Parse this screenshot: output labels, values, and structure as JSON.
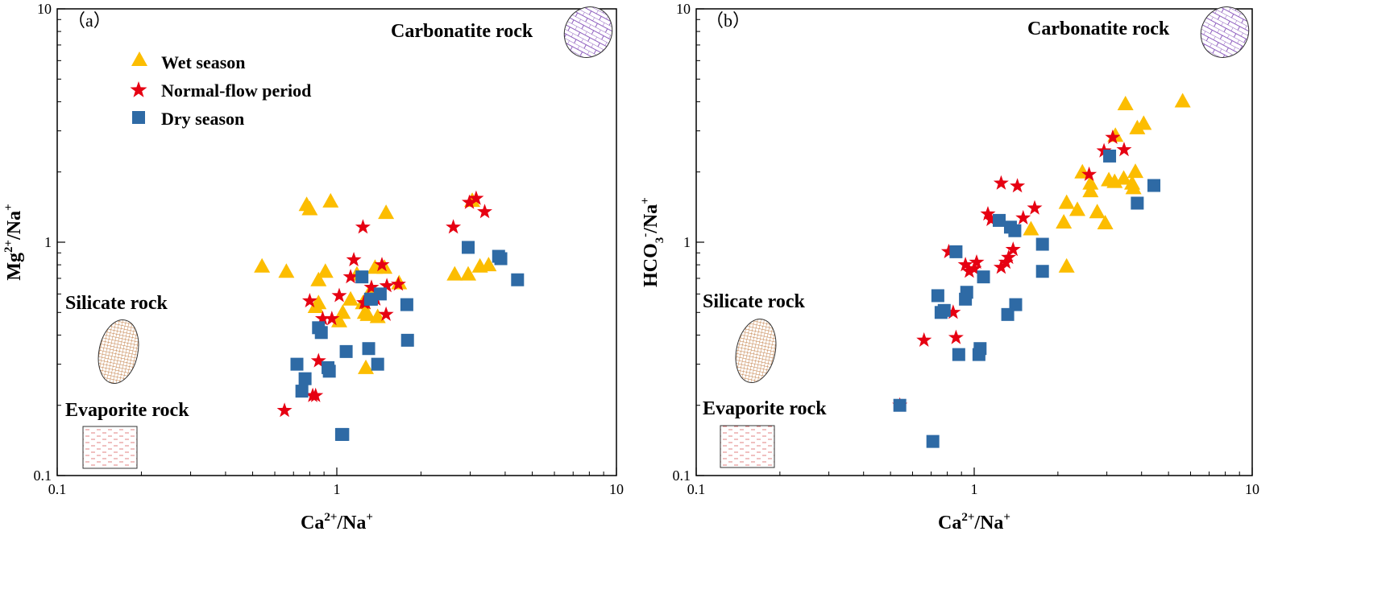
{
  "chart_data": [
    {
      "type": "scatter",
      "panel_label": "（a）",
      "xlabel_main": "Ca",
      "xlabel_sup": "2+",
      "xlabel_rest": "/Na",
      "xlabel_sup2": "+",
      "ylabel_main": "Mg",
      "ylabel_sup": "2+",
      "ylabel_rest": "/Na",
      "ylabel_sup2": "+",
      "xscale": "log",
      "yscale": "log",
      "xlim": [
        0.1,
        10
      ],
      "ylim": [
        0.1,
        10
      ],
      "xticks": [
        "0.1",
        "1",
        "10"
      ],
      "yticks": [
        "0.1",
        "1",
        "10"
      ],
      "legend_position": "top-left",
      "regions": [
        {
          "name": "Carbonatite rock",
          "pattern": "brick",
          "color": "#8f5fbf"
        },
        {
          "name": "Silicate rock",
          "pattern": "grid",
          "color": "#c07a40"
        },
        {
          "name": "Evaporite rock",
          "pattern": "dash",
          "color": "#e08080"
        }
      ],
      "series": [
        {
          "name": "Wet season",
          "marker": "triangle",
          "color": "#fcbd00",
          "x": [
            0.54,
            0.66,
            0.78,
            0.8,
            0.86,
            0.91,
            0.95,
            0.84,
            0.86,
            1.02,
            1.05,
            1.12,
            1.18,
            1.24,
            1.27,
            1.29,
            1.31,
            1.37,
            1.4,
            1.48,
            1.5,
            1.26,
            1.67,
            2.64,
            2.95,
            3.05,
            3.25,
            3.49
          ],
          "y": [
            0.79,
            0.75,
            1.45,
            1.39,
            0.69,
            0.75,
            1.5,
            0.53,
            0.55,
            0.46,
            0.5,
            0.57,
            0.73,
            0.55,
            0.29,
            0.49,
            0.61,
            0.78,
            0.48,
            0.78,
            1.34,
            0.5,
            0.67,
            0.73,
            0.73,
            1.51,
            0.79,
            0.8
          ]
        },
        {
          "name": "Normal-flow period",
          "marker": "star",
          "color": "#e60012",
          "x": [
            0.65,
            0.8,
            0.82,
            0.86,
            0.89,
            0.96,
            1.02,
            1.12,
            1.15,
            1.24,
            1.25,
            1.27,
            1.33,
            1.38,
            1.45,
            1.5,
            1.51,
            1.66,
            2.61,
            2.98,
            3.15,
            3.38,
            0.84
          ],
          "y": [
            0.19,
            0.56,
            0.22,
            0.31,
            0.47,
            0.47,
            0.59,
            0.71,
            0.84,
            1.16,
            0.55,
            0.55,
            0.64,
            0.57,
            0.8,
            0.49,
            0.65,
            0.66,
            1.16,
            1.48,
            1.54,
            1.35,
            0.22
          ]
        },
        {
          "name": "Dry season",
          "marker": "square",
          "color": "#2e6aa5",
          "x": [
            0.72,
            0.75,
            0.77,
            0.86,
            0.88,
            0.93,
            0.94,
            1.04,
            1.05,
            1.08,
            1.23,
            1.3,
            1.32,
            1.4,
            1.43,
            1.78,
            1.79,
            2.95,
            3.79,
            3.86,
            4.43,
            1.33
          ],
          "y": [
            0.3,
            0.23,
            0.26,
            0.43,
            0.41,
            0.29,
            0.28,
            0.15,
            0.15,
            0.34,
            0.71,
            0.35,
            0.57,
            0.3,
            0.6,
            0.54,
            0.38,
            0.95,
            0.87,
            0.85,
            0.69,
            0.57
          ]
        }
      ]
    },
    {
      "type": "scatter",
      "panel_label": "（b）",
      "xlabel_main": "Ca",
      "xlabel_sup": "2+",
      "xlabel_rest": "/Na",
      "xlabel_sup2": "+",
      "ylabel_main": "HCO",
      "ylabel_sub": "3",
      "ylabel_sup": "-",
      "ylabel_rest": "/Na",
      "ylabel_sup2": "+",
      "xscale": "log",
      "yscale": "log",
      "xlim": [
        0.1,
        10
      ],
      "ylim": [
        0.1,
        10
      ],
      "xticks": [
        "0.1",
        "1",
        "10"
      ],
      "yticks": [
        "0.1",
        "1",
        "10"
      ],
      "regions": [
        {
          "name": "Carbonatite rock",
          "pattern": "brick",
          "color": "#8f5fbf"
        },
        {
          "name": "Silicate rock",
          "pattern": "grid",
          "color": "#c07a40"
        },
        {
          "name": "Evaporite rock",
          "pattern": "dash",
          "color": "#e08080"
        }
      ],
      "series": [
        {
          "name": "Wet season",
          "marker": "triangle",
          "color": "#fcbd00",
          "x": [
            1.6,
            2.1,
            2.15,
            2.35,
            2.45,
            2.62,
            2.62,
            2.77,
            2.96,
            3.05,
            3.22,
            3.45,
            3.5,
            3.7,
            3.74,
            3.8,
            3.86,
            4.07,
            3.2,
            5.62,
            2.15
          ],
          "y": [
            1.14,
            1.22,
            1.48,
            1.38,
            2.0,
            1.66,
            1.79,
            1.35,
            1.21,
            1.85,
            2.87,
            1.88,
            3.92,
            1.79,
            1.71,
            2.01,
            3.09,
            3.23,
            1.82,
            4.03,
            0.79
          ]
        },
        {
          "name": "Normal-flow period",
          "marker": "star",
          "color": "#e60012",
          "x": [
            0.54,
            0.66,
            0.81,
            0.84,
            0.86,
            0.93,
            1.0,
            1.02,
            1.12,
            1.15,
            1.25,
            1.25,
            1.3,
            1.33,
            1.38,
            1.43,
            1.5,
            1.65,
            2.59,
            2.93,
            3.15,
            3.46,
            0.96
          ],
          "y": [
            0.2,
            0.38,
            0.91,
            0.5,
            0.39,
            0.8,
            0.77,
            0.82,
            1.32,
            1.25,
            0.78,
            1.79,
            0.82,
            0.86,
            0.93,
            1.74,
            1.27,
            1.4,
            1.95,
            2.46,
            2.81,
            2.49,
            0.75
          ]
        },
        {
          "name": "Dry season",
          "marker": "square",
          "color": "#2e6aa5",
          "x": [
            0.54,
            0.71,
            0.74,
            0.76,
            0.78,
            0.86,
            0.88,
            0.93,
            0.94,
            1.04,
            1.05,
            1.08,
            1.23,
            1.32,
            1.35,
            1.4,
            1.41,
            1.76,
            1.76,
            3.07,
            3.86,
            4.43
          ],
          "y": [
            0.2,
            0.14,
            0.59,
            0.5,
            0.51,
            0.91,
            0.33,
            0.57,
            0.61,
            0.33,
            0.35,
            0.71,
            1.24,
            0.49,
            1.16,
            1.12,
            0.54,
            0.98,
            0.75,
            2.34,
            1.47,
            1.75
          ]
        }
      ]
    }
  ],
  "legend": {
    "wet": "Wet season",
    "normal": "Normal-flow period",
    "dry": "Dry season"
  }
}
